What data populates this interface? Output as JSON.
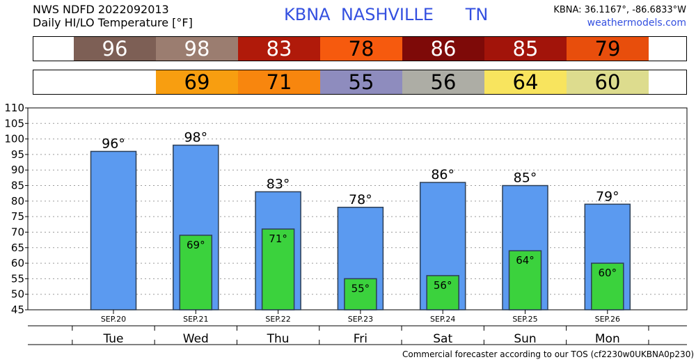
{
  "header": {
    "line1": "NWS NDFD 2022092013",
    "line2": "Daily HI/LO Temperature [°F]",
    "station": "KBNA",
    "city": "NASHVILLE",
    "state": "TN",
    "coords": "KBNA: 36.1167°, -86.6833°W",
    "site": "weathermodels.com"
  },
  "hi_strip": [
    {
      "value": "96",
      "color": "#7d5f55",
      "text_color": "#ffffff"
    },
    {
      "value": "98",
      "color": "#9b7d70",
      "text_color": "#ffffff"
    },
    {
      "value": "83",
      "color": "#b01a0a",
      "text_color": "#ffffff"
    },
    {
      "value": "78",
      "color": "#f65a0e",
      "text_color": "#000000"
    },
    {
      "value": "86",
      "color": "#7e0a08",
      "text_color": "#ffffff"
    },
    {
      "value": "85",
      "color": "#a2140a",
      "text_color": "#ffffff"
    },
    {
      "value": "79",
      "color": "#e84e0c",
      "text_color": "#000000"
    }
  ],
  "lo_strip": [
    {
      "value": "69",
      "color": "#f89e10",
      "text_color": "#000000"
    },
    {
      "value": "71",
      "color": "#f8860e",
      "text_color": "#000000"
    },
    {
      "value": "55",
      "color": "#8e8cbe",
      "text_color": "#000000"
    },
    {
      "value": "56",
      "color": "#adada5",
      "text_color": "#000000"
    },
    {
      "value": "64",
      "color": "#f8e45e",
      "text_color": "#000000"
    },
    {
      "value": "60",
      "color": "#dddc8e",
      "text_color": "#000000"
    }
  ],
  "chart_data": {
    "type": "bar",
    "categories": [
      "Tue",
      "Wed",
      "Thu",
      "Fri",
      "Sat",
      "Sun",
      "Mon"
    ],
    "dates": [
      "SEP.20",
      "SEP.21",
      "SEP.22",
      "SEP.23",
      "SEP.24",
      "SEP.25",
      "SEP.26"
    ],
    "series": [
      {
        "values": [
          96,
          98,
          83,
          78,
          86,
          85,
          79
        ],
        "labels": [
          "96°",
          "98°",
          "83°",
          "78°",
          "86°",
          "85°",
          "79°"
        ],
        "color": "#5b9af0"
      },
      {
        "values": [
          null,
          69,
          71,
          55,
          56,
          64,
          60
        ],
        "labels": [
          "",
          "69°",
          "71°",
          "55°",
          "56°",
          "64°",
          "60°"
        ],
        "color": "#3bd23d"
      }
    ],
    "ylim": [
      45,
      110
    ],
    "yticks": [
      "45",
      "50",
      "55",
      "60",
      "65",
      "70",
      "75",
      "80",
      "85",
      "90",
      "95",
      "100",
      "105",
      "110"
    ],
    "grid": true
  },
  "footer": "Commercial forecaster according to our TOS (cf2230w0UKBNA0p230)"
}
